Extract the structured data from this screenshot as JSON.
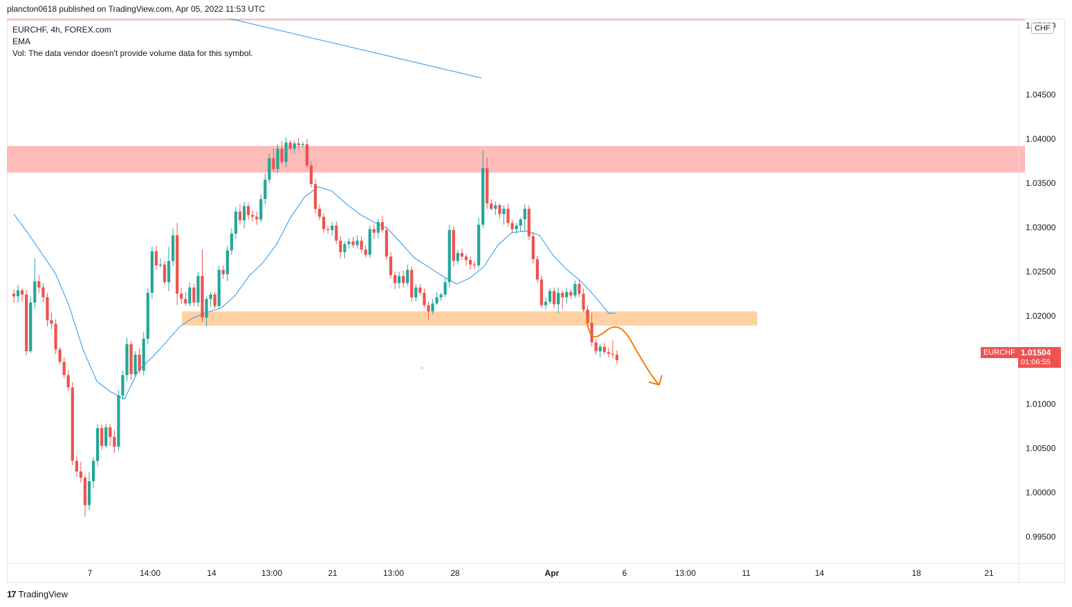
{
  "header": {
    "publish_text": "plancton0618 published on TradingView.com, Apr 05, 2022 11:53 UTC"
  },
  "legend": {
    "symbol_line": "EURCHF, 4h, FOREX.com",
    "ema_label": "EMA",
    "vol_line": "Vol: The data vendor doesn't provide volume data for this symbol."
  },
  "currency_badge": "CHF",
  "last_price": {
    "symbol": "EURCHF",
    "price": "1.01504",
    "countdown": "01:06:55"
  },
  "footer": {
    "brand": "TradingView",
    "logo_glyph": "17"
  },
  "colors": {
    "up": "#26a69a",
    "down": "#ef5350",
    "ema": "#2196f3",
    "resistance_zone": "#ffb2b2",
    "support_zone": "#ffcc99",
    "projection": "#f57c00"
  },
  "chart_data": {
    "type": "candlestick",
    "title": "EURCHF, 4h, FOREX.com",
    "ylim": [
      0.992,
      1.0536
    ],
    "y_ticks": [
      "1.04500",
      "1.04000",
      "1.03500",
      "1.03000",
      "1.02500",
      "1.02000",
      "1.01500",
      "1.01000",
      "1.00500",
      "1.00000",
      "0.99500"
    ],
    "y_ticks_partial": "1.05000",
    "x_ticks": [
      "7",
      "14:00",
      "14",
      "13:00",
      "21",
      "13:00",
      "28",
      "Apr",
      "6",
      "13:00",
      "11",
      "14",
      "18",
      "21"
    ],
    "bar_start_range": [
      10,
      882
    ],
    "candles": [
      [
        1.0225,
        1.023,
        1.0215,
        1.0222
      ],
      [
        1.0222,
        1.0235,
        1.0215,
        1.0229
      ],
      [
        1.0229,
        1.0231,
        1.0216,
        1.0224
      ],
      [
        1.0224,
        1.0229,
        1.0155,
        1.016
      ],
      [
        1.016,
        1.0222,
        1.0158,
        1.0215
      ],
      [
        1.0215,
        1.0265,
        1.0208,
        1.0239
      ],
      [
        1.0239,
        1.0246,
        1.0226,
        1.0232
      ],
      [
        1.0232,
        1.0237,
        1.0215,
        1.0221
      ],
      [
        1.0221,
        1.0226,
        1.0188,
        1.0195
      ],
      [
        1.0195,
        1.0204,
        1.0185,
        1.0191
      ],
      [
        1.0191,
        1.0196,
        1.0157,
        1.0162
      ],
      [
        1.0162,
        1.0165,
        1.0145,
        1.0148
      ],
      [
        1.0148,
        1.0153,
        1.013,
        1.0133
      ],
      [
        1.0133,
        1.0139,
        1.0115,
        1.0119
      ],
      [
        1.0119,
        1.0125,
        1.0031,
        1.0036
      ],
      [
        1.0036,
        1.0041,
        1.0018,
        1.0024
      ],
      [
        1.0024,
        1.0035,
        1.0011,
        1.0017
      ],
      [
        1.0017,
        1.002,
        0.9973,
        0.9986
      ],
      [
        0.9986,
        1.0023,
        0.998,
        1.0013
      ],
      [
        1.0013,
        1.004,
        1.0005,
        1.0036
      ],
      [
        1.0036,
        1.0078,
        1.003,
        1.0073
      ],
      [
        1.0073,
        1.0077,
        1.0048,
        1.0053
      ],
      [
        1.0053,
        1.0078,
        1.005,
        1.0074
      ],
      [
        1.0074,
        1.0078,
        1.0053,
        1.0063
      ],
      [
        1.0063,
        1.0071,
        1.0045,
        1.0052
      ],
      [
        1.0052,
        1.0116,
        1.0048,
        1.011
      ],
      [
        1.011,
        1.0138,
        1.0105,
        1.0133
      ],
      [
        1.0133,
        1.0175,
        1.0126,
        1.0168
      ],
      [
        1.0168,
        1.0172,
        1.0128,
        1.0134
      ],
      [
        1.0134,
        1.016,
        1.0131,
        1.0156
      ],
      [
        1.0156,
        1.0163,
        1.0135,
        1.0138
      ],
      [
        1.0138,
        1.0182,
        1.0133,
        1.0174
      ],
      [
        1.0174,
        1.0231,
        1.0168,
        1.0226
      ],
      [
        1.0226,
        1.0278,
        1.0219,
        1.0273
      ],
      [
        1.0273,
        1.0279,
        1.0252,
        1.0257
      ],
      [
        1.0257,
        1.0265,
        1.0254,
        1.0258
      ],
      [
        1.0258,
        1.0262,
        1.0235,
        1.0238
      ],
      [
        1.0238,
        1.0278,
        1.0228,
        1.0262
      ],
      [
        1.0262,
        1.0299,
        1.0256,
        1.0291
      ],
      [
        1.0291,
        1.0305,
        1.0212,
        1.0225
      ],
      [
        1.0225,
        1.0232,
        1.0214,
        1.0219
      ],
      [
        1.0219,
        1.0227,
        1.0211,
        1.0214
      ],
      [
        1.0214,
        1.0238,
        1.0211,
        1.0232
      ],
      [
        1.0232,
        1.0236,
        1.0211,
        1.0215
      ],
      [
        1.0215,
        1.025,
        1.021,
        1.0245
      ],
      [
        1.0245,
        1.0275,
        1.0193,
        1.0198
      ],
      [
        1.0198,
        1.0222,
        1.0188,
        1.0219
      ],
      [
        1.0219,
        1.0227,
        1.021,
        1.0224
      ],
      [
        1.0224,
        1.0227,
        1.0208,
        1.0211
      ],
      [
        1.0211,
        1.0257,
        1.0208,
        1.0252
      ],
      [
        1.0252,
        1.0257,
        1.0242,
        1.0247
      ],
      [
        1.0247,
        1.0279,
        1.0239,
        1.0274
      ],
      [
        1.0274,
        1.0299,
        1.0269,
        1.0293
      ],
      [
        1.0293,
        1.0323,
        1.0287,
        1.0318
      ],
      [
        1.0318,
        1.0326,
        1.0303,
        1.0308
      ],
      [
        1.0308,
        1.0329,
        1.0299,
        1.0324
      ],
      [
        1.0324,
        1.0328,
        1.0309,
        1.0314
      ],
      [
        1.0314,
        1.0319,
        1.0307,
        1.0312
      ],
      [
        1.0312,
        1.0318,
        1.0303,
        1.0309
      ],
      [
        1.0309,
        1.0337,
        1.0306,
        1.0332
      ],
      [
        1.0332,
        1.0361,
        1.0326,
        1.0354
      ],
      [
        1.0354,
        1.0383,
        1.035,
        1.0378
      ],
      [
        1.0378,
        1.0389,
        1.0363,
        1.0366
      ],
      [
        1.0366,
        1.0394,
        1.0361,
        1.0389
      ],
      [
        1.0389,
        1.0397,
        1.0371,
        1.0374
      ],
      [
        1.0374,
        1.0402,
        1.0368,
        1.0396
      ],
      [
        1.0396,
        1.0399,
        1.0387,
        1.0389
      ],
      [
        1.0389,
        1.0398,
        1.0384,
        1.0395
      ],
      [
        1.0395,
        1.0401,
        1.0389,
        1.0393
      ],
      [
        1.0393,
        1.0397,
        1.0391,
        1.0394
      ],
      [
        1.0394,
        1.04,
        1.0367,
        1.037
      ],
      [
        1.037,
        1.0375,
        1.0345,
        1.0349
      ],
      [
        1.0349,
        1.0355,
        1.0316,
        1.0321
      ],
      [
        1.0321,
        1.0326,
        1.0308,
        1.0312
      ],
      [
        1.0312,
        1.0316,
        1.0294,
        1.0298
      ],
      [
        1.0298,
        1.0302,
        1.0293,
        1.0297
      ],
      [
        1.0297,
        1.0306,
        1.0291,
        1.0302
      ],
      [
        1.0302,
        1.0307,
        1.0281,
        1.0285
      ],
      [
        1.0285,
        1.029,
        1.0265,
        1.0272
      ],
      [
        1.0272,
        1.0284,
        1.0265,
        1.0281
      ],
      [
        1.0281,
        1.0288,
        1.0276,
        1.0284
      ],
      [
        1.0284,
        1.0289,
        1.0277,
        1.028
      ],
      [
        1.028,
        1.0291,
        1.0276,
        1.0285
      ],
      [
        1.0285,
        1.029,
        1.0271,
        1.0275
      ],
      [
        1.0275,
        1.028,
        1.0266,
        1.0269
      ],
      [
        1.0269,
        1.0302,
        1.0266,
        1.0298
      ],
      [
        1.0298,
        1.0303,
        1.0287,
        1.0294
      ],
      [
        1.0294,
        1.031,
        1.0288,
        1.0306
      ],
      [
        1.0306,
        1.0313,
        1.0294,
        1.0297
      ],
      [
        1.0297,
        1.03,
        1.0263,
        1.0267
      ],
      [
        1.0267,
        1.0272,
        1.0242,
        1.0246
      ],
      [
        1.0246,
        1.025,
        1.023,
        1.0237
      ],
      [
        1.0237,
        1.025,
        1.0231,
        1.0245
      ],
      [
        1.0245,
        1.0251,
        1.0232,
        1.0237
      ],
      [
        1.0237,
        1.0258,
        1.0234,
        1.0252
      ],
      [
        1.0252,
        1.0256,
        1.0216,
        1.0221
      ],
      [
        1.0221,
        1.0236,
        1.0216,
        1.0232
      ],
      [
        1.0232,
        1.0236,
        1.0223,
        1.0226
      ],
      [
        1.0226,
        1.0231,
        1.0209,
        1.0212
      ],
      [
        1.0212,
        1.0216,
        1.0196,
        1.0205
      ],
      [
        1.0205,
        1.0219,
        1.0202,
        1.0214
      ],
      [
        1.0214,
        1.0227,
        1.0212,
        1.0221
      ],
      [
        1.0221,
        1.0226,
        1.0217,
        1.0224
      ],
      [
        1.0224,
        1.0243,
        1.0221,
        1.0238
      ],
      [
        1.0238,
        1.0303,
        1.0232,
        1.0297
      ],
      [
        1.0297,
        1.0301,
        1.0256,
        1.0262
      ],
      [
        1.0262,
        1.0275,
        1.0258,
        1.0271
      ],
      [
        1.0271,
        1.0276,
        1.0263,
        1.0267
      ],
      [
        1.0267,
        1.027,
        1.0257,
        1.0263
      ],
      [
        1.0263,
        1.0267,
        1.0252,
        1.0258
      ],
      [
        1.0258,
        1.0262,
        1.0253,
        1.0257
      ],
      [
        1.0257,
        1.0311,
        1.0254,
        1.0303
      ],
      [
        1.0303,
        1.0387,
        1.0299,
        1.0367
      ],
      [
        1.0367,
        1.0379,
        1.0321,
        1.0327
      ],
      [
        1.0327,
        1.0332,
        1.0319,
        1.0321
      ],
      [
        1.0321,
        1.0329,
        1.0314,
        1.0325
      ],
      [
        1.0325,
        1.0327,
        1.031,
        1.0315
      ],
      [
        1.0315,
        1.0325,
        1.0303,
        1.0321
      ],
      [
        1.0321,
        1.0327,
        1.0301,
        1.0305
      ],
      [
        1.0305,
        1.0309,
        1.0294,
        1.0298
      ],
      [
        1.0298,
        1.0305,
        1.0293,
        1.0302
      ],
      [
        1.0302,
        1.0311,
        1.0295,
        1.0309
      ],
      [
        1.0309,
        1.0326,
        1.0295,
        1.0321
      ],
      [
        1.0321,
        1.0325,
        1.0286,
        1.029
      ],
      [
        1.029,
        1.0295,
        1.0259,
        1.0264
      ],
      [
        1.0264,
        1.0268,
        1.0237,
        1.0241
      ],
      [
        1.0241,
        1.0246,
        1.0208,
        1.0212
      ],
      [
        1.0212,
        1.0221,
        1.0207,
        1.0216
      ],
      [
        1.0216,
        1.0231,
        1.0213,
        1.0228
      ],
      [
        1.0228,
        1.0232,
        1.0209,
        1.0213
      ],
      [
        1.0213,
        1.0232,
        1.0203,
        1.0226
      ],
      [
        1.0226,
        1.0229,
        1.0208,
        1.0221
      ],
      [
        1.0221,
        1.0232,
        1.0214,
        1.0227
      ],
      [
        1.0227,
        1.023,
        1.0219,
        1.0223
      ],
      [
        1.0223,
        1.024,
        1.022,
        1.0236
      ],
      [
        1.0236,
        1.0241,
        1.0221,
        1.0225
      ],
      [
        1.0225,
        1.0231,
        1.0204,
        1.0207
      ],
      [
        1.0207,
        1.0212,
        1.0188,
        1.0192
      ],
      [
        1.0192,
        1.0203,
        1.0165,
        1.017
      ],
      [
        1.017,
        1.0174,
        1.0156,
        1.016
      ],
      [
        1.016,
        1.0168,
        1.0153,
        1.0165
      ],
      [
        1.0165,
        1.0169,
        1.0156,
        1.0159
      ],
      [
        1.0159,
        1.0164,
        1.0153,
        1.0157
      ],
      [
        1.0157,
        1.0172,
        1.0152,
        1.0156
      ],
      [
        1.0156,
        1.0161,
        1.0145,
        1.015
      ]
    ],
    "ema": [
      [
        10,
        1.0315
      ],
      [
        30,
        1.0294
      ],
      [
        50,
        1.0271
      ],
      [
        70,
        1.0248
      ],
      [
        90,
        1.0211
      ],
      [
        110,
        1.0162
      ],
      [
        130,
        1.0126
      ],
      [
        150,
        1.0114
      ],
      [
        170,
        1.0106
      ],
      [
        190,
        1.0138
      ],
      [
        210,
        1.0153
      ],
      [
        230,
        1.017
      ],
      [
        250,
        1.0188
      ],
      [
        270,
        1.0198
      ],
      [
        290,
        1.0204
      ],
      [
        310,
        1.0209
      ],
      [
        330,
        1.0223
      ],
      [
        350,
        1.0245
      ],
      [
        370,
        1.026
      ],
      [
        390,
        1.0281
      ],
      [
        410,
        1.0311
      ],
      [
        430,
        1.0334
      ],
      [
        450,
        1.0346
      ],
      [
        470,
        1.0341
      ],
      [
        490,
        1.0327
      ],
      [
        510,
        1.0315
      ],
      [
        530,
        1.0306
      ],
      [
        550,
        1.0299
      ],
      [
        570,
        1.0282
      ],
      [
        590,
        1.0265
      ],
      [
        610,
        1.0255
      ],
      [
        630,
        1.0245
      ],
      [
        650,
        1.0236
      ],
      [
        670,
        1.0243
      ],
      [
        690,
        1.0256
      ],
      [
        710,
        1.028
      ],
      [
        730,
        1.0294
      ],
      [
        750,
        1.0296
      ],
      [
        770,
        1.0291
      ],
      [
        790,
        1.0268
      ],
      [
        810,
        1.0252
      ],
      [
        830,
        1.0239
      ],
      [
        850,
        1.0222
      ],
      [
        870,
        1.0203
      ],
      [
        880,
        1.0203
      ]
    ],
    "blue_trendline": [
      [
        1.0541,
        295
      ],
      [
        1.0469,
        686
      ]
    ],
    "zones": [
      {
        "name": "top-resistance",
        "y_top": 1.0544,
        "y_bottom": 1.0534,
        "x_end": 1472
      },
      {
        "name": "resistance",
        "y_top": 1.0392,
        "y_bottom": 1.0362,
        "x_end": 1472
      },
      {
        "name": "support",
        "y_top": 1.0205,
        "y_bottom": 1.0189,
        "x_start": 253,
        "x_end": 1085
      }
    ],
    "projection_arrow": {
      "color": "#f57c00",
      "direction": "down",
      "target_price": 1.0122
    }
  }
}
